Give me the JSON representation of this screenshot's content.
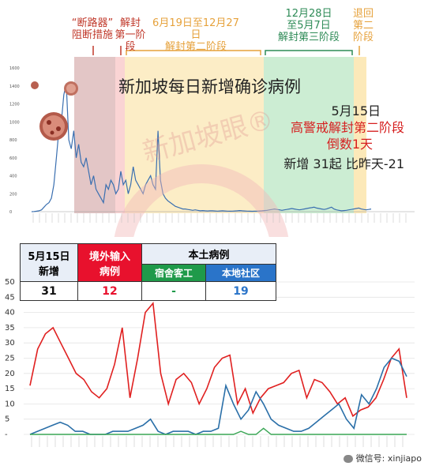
{
  "phases": [
    {
      "text": "“断路器”\n阻断措施",
      "color": "#c0392b"
    },
    {
      "text": "解封\n第一阶段",
      "color": "#c0392b"
    },
    {
      "text": "6月19日至12月27日\n解封第二阶段",
      "color": "#e6a23c"
    },
    {
      "text": "12月28日\n至5月7日\n解封第三阶段",
      "color": "#2e8b57"
    },
    {
      "text": "退回\n第二\n阶段",
      "color": "#e6a23c"
    }
  ],
  "chart_title": "新加坡每日新增确诊病例",
  "annotation": {
    "date": "5月15日",
    "alert": "高警戒解封第二阶段",
    "countdown": "倒数1天",
    "new_cases": "新增 31起 比昨天-21"
  },
  "colors": {
    "circuit_breaker": "#d9b3b3",
    "phase1": "#f9c9c9",
    "phase2": "#fbe3a8",
    "phase3": "#bfe8c8",
    "back_phase2": "#fbe3a8",
    "main_line": "#3a6fb0",
    "table_red": "#e8112d",
    "table_green": "#1f9a4a",
    "table_blue": "#2a74c9",
    "line_red": "#e02020",
    "line_blue": "#2a6fa8",
    "line_green": "#3aa655"
  },
  "table": {
    "header_date": "5月15日\n新增",
    "header_imported": "境外输入\n病例",
    "header_local": "本土病例",
    "header_dorm": "宿舍客工",
    "header_community": "本地社区",
    "total": "31",
    "imported": "12",
    "dorm": "-",
    "community": "19"
  },
  "watermark": "微信号: xinjiapo",
  "chart_data": [
    {
      "type": "line",
      "title": "新加坡每日新增确诊病例",
      "ylim": [
        0,
        1600
      ],
      "y_ticks": [
        "1600",
        "1400",
        "1200",
        "1000",
        "800",
        "600",
        "400",
        "200",
        "0"
      ],
      "series": [
        {
          "values": [
            0,
            2,
            5,
            10,
            20,
            50,
            80,
            100,
            150,
            300,
            600,
            900,
            1000,
            1300,
            1426,
            800,
            700,
            900,
            600,
            750,
            550,
            500,
            600,
            450,
            300,
            400,
            250,
            200,
            150,
            100,
            300,
            250,
            350,
            300,
            200,
            250,
            450,
            300,
            350,
            200,
            300,
            500,
            350,
            300,
            250,
            200,
            300,
            350,
            400,
            300,
            250,
            900,
            350,
            200,
            150,
            120,
            100,
            80,
            60,
            50,
            40,
            30,
            30,
            25,
            20,
            15,
            20,
            15,
            10,
            12,
            10,
            8,
            10,
            10,
            8,
            6,
            8,
            10,
            8,
            6,
            5,
            6,
            8,
            10,
            12,
            10,
            8,
            6,
            5,
            4,
            5,
            6,
            8,
            10,
            12,
            15,
            20,
            25,
            30,
            25,
            20,
            15,
            20,
            25,
            30,
            35,
            30,
            25,
            20,
            25,
            30,
            35,
            40,
            45,
            50,
            40,
            35,
            30,
            25,
            30,
            40,
            50,
            30,
            20,
            15,
            10,
            12,
            15,
            20,
            25,
            30,
            35,
            40,
            30,
            25,
            20,
            25,
            30
          ]
        }
      ]
    },
    {
      "type": "line",
      "ylim": [
        0,
        50
      ],
      "y_ticks": [
        "50",
        "45",
        "40",
        "35",
        "30",
        "25",
        "20",
        "15",
        "10",
        "5",
        "-"
      ],
      "series": [
        {
          "values": [
            16,
            28,
            33,
            35,
            30,
            25,
            20,
            18,
            14,
            12,
            15,
            23,
            35,
            12,
            25,
            40,
            43,
            20,
            10,
            18,
            20,
            17,
            10,
            15,
            22,
            25,
            26,
            10,
            15,
            7,
            12,
            15,
            16,
            17,
            20,
            21,
            12,
            18,
            17,
            14,
            10,
            12,
            6,
            8,
            9,
            12,
            18,
            25,
            28,
            12
          ]
        },
        {
          "values": [
            0,
            1,
            2,
            3,
            4,
            3,
            1,
            1,
            0,
            0,
            0,
            1,
            1,
            1,
            2,
            3,
            5,
            1,
            0,
            1,
            1,
            1,
            0,
            1,
            1,
            2,
            16,
            10,
            5,
            8,
            14,
            10,
            5,
            3,
            2,
            1,
            1,
            2,
            4,
            6,
            8,
            10,
            5,
            2,
            13,
            10,
            15,
            22,
            25,
            24,
            19
          ]
        },
        {
          "values": [
            0,
            0,
            0,
            0,
            0,
            0,
            0,
            0,
            0,
            0,
            0,
            0,
            0,
            0,
            0,
            0,
            0,
            0,
            0,
            0,
            0,
            0,
            0,
            0,
            0,
            0,
            0,
            0,
            1,
            0,
            0,
            2,
            0,
            0,
            0,
            0,
            0,
            0,
            0,
            0,
            0,
            0,
            0,
            0,
            0,
            0,
            0,
            0,
            0,
            0,
            0
          ]
        }
      ]
    }
  ]
}
